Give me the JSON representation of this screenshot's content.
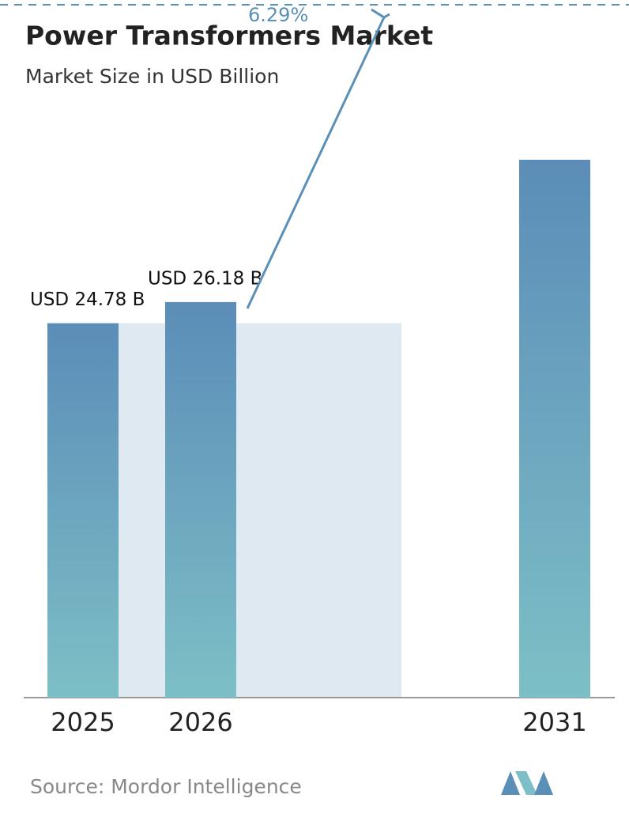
{
  "chart_data": {
    "type": "bar",
    "title": "Power Transformers Market",
    "subtitle": "Market Size in USD Billion",
    "categories": [
      "2025",
      "2026",
      "2031"
    ],
    "values": [
      24.78,
      26.18,
      35.6
    ],
    "value_labels": [
      "USD 24.78 B",
      "USD 26.18 B",
      null
    ],
    "annotation": "6.29%",
    "source": "Source:  Mordor Intelligence",
    "color_top": "#5b8db8",
    "color_bottom": "#7dbfc6"
  }
}
